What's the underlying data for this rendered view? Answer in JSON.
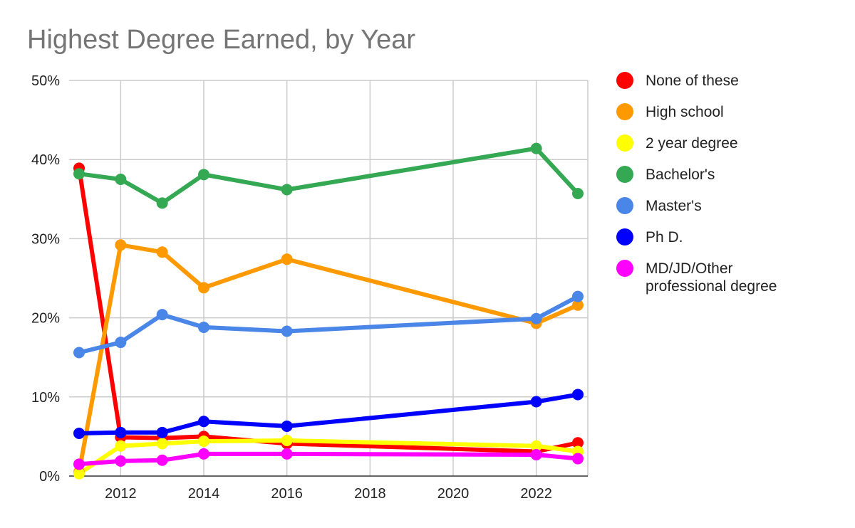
{
  "chart_data": {
    "type": "line",
    "title": "Highest Degree Earned, by Year",
    "xlabel": "",
    "ylabel": "",
    "xlim": [
      2011,
      2023
    ],
    "ylim": [
      0,
      50
    ],
    "x_ticks": [
      2012,
      2014,
      2016,
      2018,
      2020,
      2022
    ],
    "y_ticks": [
      0,
      10,
      20,
      30,
      40,
      50
    ],
    "y_tick_labels": [
      "0%",
      "10%",
      "20%",
      "30%",
      "40%",
      "50%"
    ],
    "grid": true,
    "legend_position": "right",
    "x": [
      2011,
      2012,
      2013,
      2014,
      2016,
      2022,
      2023
    ],
    "series": [
      {
        "name": "None of these",
        "color": "#ff0000",
        "values": [
          38.9,
          4.9,
          4.8,
          5.0,
          4.1,
          3.1,
          4.2
        ]
      },
      {
        "name": "High school",
        "color": "#ff9900",
        "values": [
          0.5,
          29.2,
          28.3,
          23.8,
          27.4,
          19.3,
          21.6
        ]
      },
      {
        "name": "2 year degree",
        "color": "#ffff00",
        "values": [
          0.3,
          3.8,
          4.1,
          4.4,
          4.5,
          3.8,
          3.1
        ]
      },
      {
        "name": "Bachelor's",
        "color": "#34a853",
        "values": [
          38.2,
          37.5,
          34.5,
          38.1,
          36.2,
          41.4,
          35.7
        ]
      },
      {
        "name": "Master's",
        "color": "#4a86e8",
        "values": [
          15.6,
          16.9,
          20.4,
          18.8,
          18.3,
          19.9,
          22.7
        ]
      },
      {
        "name": "Ph D.",
        "color": "#0000ff",
        "values": [
          5.4,
          5.5,
          5.5,
          6.9,
          6.3,
          9.4,
          10.3
        ]
      },
      {
        "name": "MD/JD/Other\nprofessional degree",
        "color": "#ff00ff",
        "values": [
          1.5,
          1.9,
          2.0,
          2.8,
          2.8,
          2.7,
          2.2
        ]
      }
    ]
  }
}
